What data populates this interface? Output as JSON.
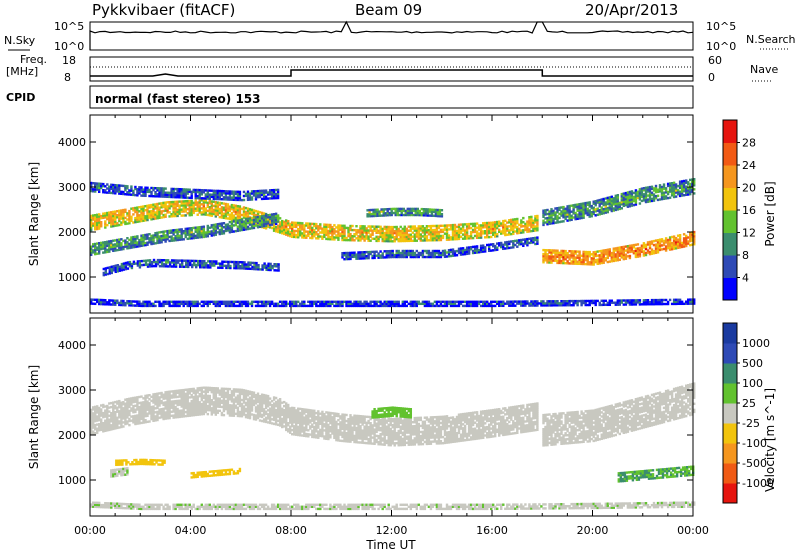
{
  "header": {
    "station": "Pykkvibaer (fitACF)",
    "beam": "Beam 09",
    "date": "20/Apr/2013"
  },
  "top_panels": {
    "nsky_label": "N.Sky",
    "nsky_ticks": [
      "10^5",
      "10^0"
    ],
    "nsearch_label": "N.Search",
    "nsearch_ticks": [
      "10^5",
      "10^0"
    ],
    "freq_label": "Freq.",
    "freq_unit": "[MHz]",
    "freq_ticks": [
      "18",
      "8"
    ],
    "nave_label": "Nave",
    "nave_ticks": [
      "60",
      "0"
    ],
    "cpid_label": "CPID",
    "cpid_text": "normal (fast stereo) 153"
  },
  "colors": {
    "power_scale": [
      "#0000ff",
      "#2e4ab6",
      "#3b8d6e",
      "#62c22f",
      "#f2c40d",
      "#f5961e",
      "#f25a14",
      "#e6140e"
    ],
    "velocity_scale": [
      "#e6140e",
      "#f05a14",
      "#f5961e",
      "#f2c40d",
      "#c8c8c0",
      "#62c22f",
      "#3b8d6e",
      "#2e4ab6",
      "#1a3aa0"
    ]
  },
  "chart_data": [
    {
      "type": "heatmap",
      "title": "",
      "xlabel": "Time UT",
      "ylabel": "Slant Range [km]",
      "x_ticks": [
        "00:00",
        "04:00",
        "08:00",
        "12:00",
        "16:00",
        "20:00",
        "00:00"
      ],
      "y_ticks": [
        "1000",
        "2000",
        "3000",
        "4000"
      ],
      "xlim": [
        "00:00",
        "24:00"
      ],
      "ylim": [
        200,
        4600
      ],
      "colorbar": {
        "label": "Power [dB]",
        "ticks": [
          "28",
          "24",
          "20",
          "16",
          "12",
          "8",
          "4"
        ],
        "range": [
          0,
          32
        ]
      },
      "bands": [
        {
          "t": [
            0,
            1.5,
            3,
            4.5,
            6,
            7.5,
            8,
            10,
            12,
            14,
            16,
            17.8
          ],
          "r": [
            2200,
            2350,
            2500,
            2550,
            2400,
            2150,
            2050,
            1980,
            1950,
            1980,
            2050,
            2200
          ],
          "w": 350,
          "level": 20
        },
        {
          "t": [
            0,
            1.5,
            3,
            4.5,
            6,
            7.5
          ],
          "r": [
            1600,
            1750,
            1900,
            2000,
            2150,
            2300
          ],
          "w": 250,
          "level": 12
        },
        {
          "t": [
            0.5,
            1.5,
            2.5,
            4,
            6,
            7.5
          ],
          "r": [
            1100,
            1250,
            1300,
            1280,
            1250,
            1200
          ],
          "w": 150,
          "level": 8
        },
        {
          "t": [
            10,
            12,
            14,
            16,
            17.8
          ],
          "r": [
            1450,
            1500,
            1500,
            1650,
            1800
          ],
          "w": 150,
          "level": 8
        },
        {
          "t": [
            11,
            12,
            13,
            14
          ],
          "r": [
            2420,
            2450,
            2450,
            2420
          ],
          "w": 180,
          "level": 12
        },
        {
          "t": [
            18,
            20,
            22,
            24
          ],
          "r": [
            1450,
            1400,
            1600,
            1850
          ],
          "w": 280,
          "level": 24
        },
        {
          "t": [
            18,
            20,
            22,
            24
          ],
          "r": [
            2300,
            2500,
            2800,
            3000
          ],
          "w": 320,
          "level": 12
        },
        {
          "t": [
            0,
            2,
            4,
            6,
            7.5
          ],
          "r": [
            3000,
            2900,
            2850,
            2800,
            2850
          ],
          "w": 220,
          "level": 8
        },
        {
          "t": [
            0,
            2,
            4,
            6,
            8,
            12,
            16,
            20,
            24
          ],
          "r": [
            450,
            400,
            400,
            400,
            400,
            400,
            400,
            420,
            450
          ],
          "w": 120,
          "level": 6
        }
      ]
    },
    {
      "type": "heatmap",
      "title": "",
      "xlabel": "Time UT",
      "ylabel": "Slant Range [km]",
      "x_ticks": [
        "00:00",
        "04:00",
        "08:00",
        "12:00",
        "16:00",
        "20:00",
        "00:00"
      ],
      "y_ticks": [
        "1000",
        "2000",
        "3000",
        "4000"
      ],
      "xlim": [
        "00:00",
        "24:00"
      ],
      "ylim": [
        200,
        4600
      ],
      "colorbar": {
        "label": "Velocity [m s^-1]",
        "ticks": [
          "1000",
          "500",
          "100",
          "25",
          "-25",
          "-100",
          "-500",
          "-1000"
        ],
        "range": [
          -1200,
          1200
        ]
      },
      "bands": [
        {
          "t": [
            0,
            1.5,
            3,
            4.5,
            6,
            7.5,
            8,
            10,
            12,
            14,
            16,
            17.8
          ],
          "r": [
            2300,
            2500,
            2650,
            2750,
            2700,
            2500,
            2300,
            2150,
            2050,
            2100,
            2250,
            2400
          ],
          "w": 600,
          "level": 0
        },
        {
          "t": [
            18,
            20,
            22,
            24
          ],
          "r": [
            2100,
            2200,
            2500,
            2800
          ],
          "w": 700,
          "level": 0
        },
        {
          "t": [
            11.2,
            12,
            12.8
          ],
          "r": [
            2480,
            2520,
            2480
          ],
          "w": 220,
          "level": 300
        },
        {
          "t": [
            1,
            2,
            3
          ],
          "r": [
            1380,
            1400,
            1380
          ],
          "w": 120,
          "level": -300
        },
        {
          "t": [
            4,
            5,
            6
          ],
          "r": [
            1100,
            1150,
            1200
          ],
          "w": 120,
          "level": -300
        },
        {
          "t": [
            0.8,
            1.5
          ],
          "r": [
            1150,
            1200
          ],
          "w": 180,
          "level": 80
        },
        {
          "t": [
            21,
            22,
            23,
            24
          ],
          "r": [
            1050,
            1100,
            1150,
            1200
          ],
          "w": 200,
          "level": 400
        },
        {
          "t": [
            0,
            2,
            4,
            6,
            8,
            12,
            16,
            20,
            24
          ],
          "r": [
            450,
            400,
            400,
            400,
            400,
            400,
            400,
            420,
            450
          ],
          "w": 120,
          "level": 60
        }
      ]
    }
  ]
}
